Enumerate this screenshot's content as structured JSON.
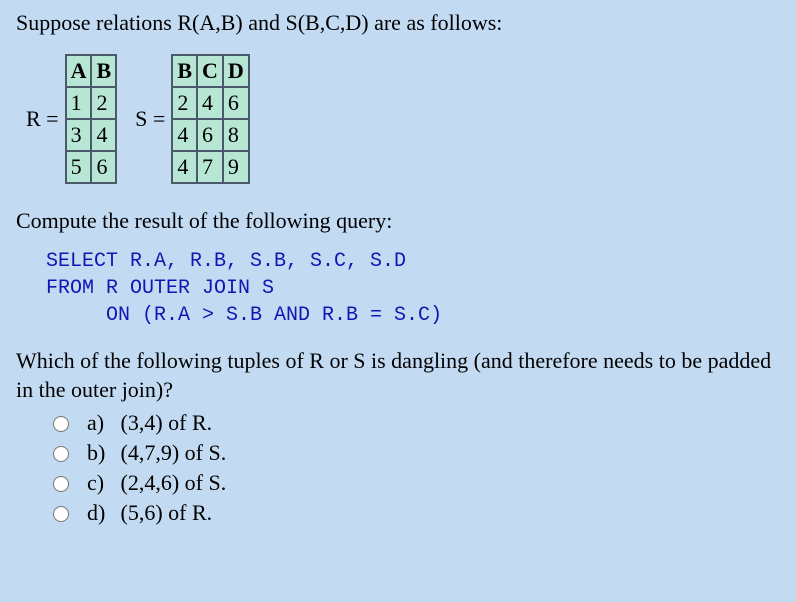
{
  "intro": "Suppose relations R(A,B) and S(B,C,D) are as follows:",
  "tableR": {
    "label": "R =",
    "headers": [
      "A",
      "B"
    ],
    "rows": [
      [
        "1",
        "2"
      ],
      [
        "3",
        "4"
      ],
      [
        "5",
        "6"
      ]
    ]
  },
  "tableS": {
    "label": "S =",
    "headers": [
      "B",
      "C",
      "D"
    ],
    "rows": [
      [
        "2",
        "4",
        "6"
      ],
      [
        "4",
        "6",
        "8"
      ],
      [
        "4",
        "7",
        "9"
      ]
    ]
  },
  "queryPrompt": "Compute the result of the following query:",
  "sql": "SELECT R.A, R.B, S.B, S.C, S.D\nFROM R OUTER JOIN S\n     ON (R.A > S.B AND R.B = S.C)",
  "question": "Which of the following tuples of R or S is dangling (and therefore needs to be padded in the outer join)?",
  "options": [
    {
      "letter": "a)",
      "text": "(3,4) of R."
    },
    {
      "letter": "b)",
      "text": "(4,7,9) of S."
    },
    {
      "letter": "c)",
      "text": "(2,4,6) of S."
    },
    {
      "letter": "d)",
      "text": "(5,6) of R."
    }
  ]
}
